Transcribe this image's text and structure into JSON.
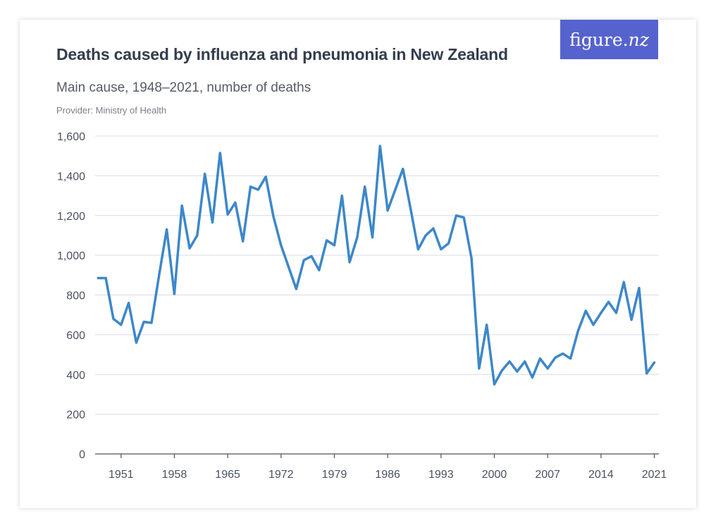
{
  "header": {
    "title": "Deaths caused by influenza and pneumonia in New Zealand",
    "subtitle": "Main cause, 1948–2021, number of deaths",
    "provider": "Provider: Ministry of Health"
  },
  "logo": {
    "text_main": "figure.",
    "text_italic": "nz"
  },
  "colors": {
    "line": "#3d87c9",
    "grid": "#d9dce1",
    "axis": "#4a5160",
    "logo_bg": "#5663cf"
  },
  "chart_data": {
    "type": "line",
    "title": "Deaths caused by influenza and pneumonia in New Zealand",
    "xlabel": "",
    "ylabel": "",
    "ylim": [
      0,
      1600
    ],
    "xlim": [
      1947.6,
      2021.6
    ],
    "yticks": [
      0,
      200,
      400,
      600,
      800,
      1000,
      1200,
      1400,
      1600
    ],
    "ytick_labels": [
      "0",
      "200",
      "400",
      "600",
      "800",
      "1,000",
      "1,200",
      "1,400",
      "1,600"
    ],
    "xticks": [
      1951,
      1958,
      1965,
      1972,
      1979,
      1986,
      1993,
      2000,
      2007,
      2014,
      2021
    ],
    "xtick_labels": [
      "1951",
      "1958",
      "1965",
      "1972",
      "1979",
      "1986",
      "1993",
      "2000",
      "2007",
      "2014",
      "2021"
    ],
    "grid": true,
    "series": [
      {
        "name": "Number of deaths",
        "x": [
          1948,
          1949,
          1950,
          1951,
          1952,
          1953,
          1954,
          1955,
          1956,
          1957,
          1958,
          1959,
          1960,
          1961,
          1962,
          1963,
          1964,
          1965,
          1966,
          1967,
          1968,
          1969,
          1970,
          1971,
          1972,
          1973,
          1974,
          1975,
          1976,
          1977,
          1978,
          1979,
          1980,
          1981,
          1982,
          1983,
          1984,
          1985,
          1986,
          1987,
          1988,
          1989,
          1990,
          1991,
          1992,
          1993,
          1994,
          1995,
          1996,
          1997,
          1998,
          1999,
          2000,
          2001,
          2002,
          2003,
          2004,
          2005,
          2006,
          2007,
          2008,
          2009,
          2010,
          2011,
          2012,
          2013,
          2014,
          2015,
          2016,
          2017,
          2018,
          2019,
          2020,
          2021
        ],
        "values": [
          885,
          885,
          680,
          650,
          760,
          560,
          665,
          660,
          900,
          1130,
          805,
          1250,
          1035,
          1100,
          1410,
          1165,
          1515,
          1205,
          1265,
          1070,
          1345,
          1330,
          1395,
          1195,
          1050,
          940,
          830,
          975,
          995,
          925,
          1075,
          1050,
          1300,
          965,
          1090,
          1345,
          1090,
          1550,
          1225,
          1330,
          1435,
          1235,
          1030,
          1100,
          1135,
          1030,
          1060,
          1200,
          1190,
          985,
          430,
          650,
          350,
          420,
          465,
          415,
          465,
          385,
          480,
          430,
          485,
          505,
          480,
          620,
          720,
          650,
          710,
          765,
          710,
          865,
          675,
          835,
          405,
          460
        ]
      }
    ]
  }
}
